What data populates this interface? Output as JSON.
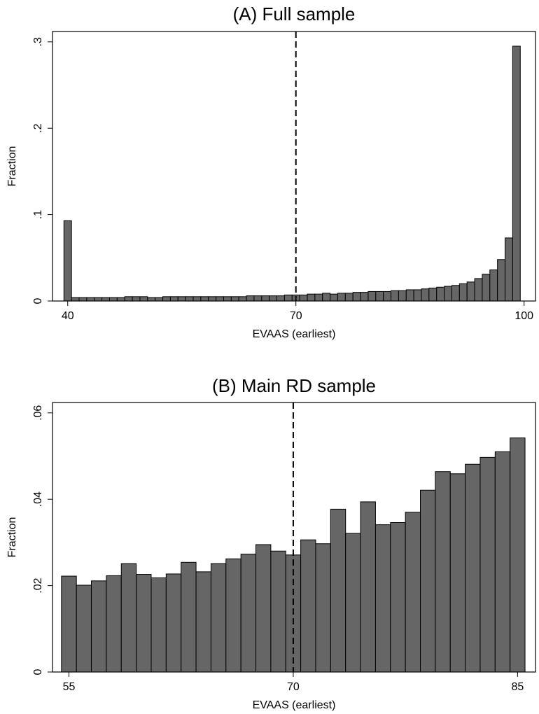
{
  "chart_data": [
    {
      "type": "histogram",
      "title": "(A) Full sample",
      "xlabel": "EVAAS (earliest)",
      "ylabel": "Fraction",
      "bins": [
        39.5,
        40.5,
        41.5,
        42.5,
        43.5,
        44.5,
        45.5,
        46.5,
        47.5,
        48.5,
        49.5,
        50.5,
        51.5,
        52.5,
        53.5,
        54.5,
        55.5,
        56.5,
        57.5,
        58.5,
        59.5,
        60.5,
        61.5,
        62.5,
        63.5,
        64.5,
        65.5,
        66.5,
        67.5,
        68.5,
        69.5,
        70.5,
        71.5,
        72.5,
        73.5,
        74.5,
        75.5,
        76.5,
        77.5,
        78.5,
        79.5,
        80.5,
        81.5,
        82.5,
        83.5,
        84.5,
        85.5,
        86.5,
        87.5,
        88.5,
        89.5,
        90.5,
        91.5,
        92.5,
        93.5,
        94.5,
        95.5,
        96.5,
        97.5,
        98.5,
        99.5
      ],
      "values": [
        0.093,
        0.004,
        0.004,
        0.004,
        0.004,
        0.004,
        0.004,
        0.004,
        0.005,
        0.005,
        0.005,
        0.004,
        0.004,
        0.005,
        0.005,
        0.005,
        0.005,
        0.005,
        0.005,
        0.005,
        0.005,
        0.005,
        0.005,
        0.005,
        0.006,
        0.006,
        0.006,
        0.006,
        0.006,
        0.007,
        0.007,
        0.007,
        0.008,
        0.008,
        0.009,
        0.008,
        0.009,
        0.009,
        0.01,
        0.01,
        0.011,
        0.011,
        0.011,
        0.012,
        0.012,
        0.013,
        0.013,
        0.014,
        0.015,
        0.016,
        0.017,
        0.018,
        0.02,
        0.022,
        0.026,
        0.031,
        0.036,
        0.048,
        0.073,
        0.295
      ],
      "color": "#666666",
      "xlim": [
        38,
        101.5
      ],
      "ylim": [
        0,
        0.312
      ],
      "xticks": [
        40,
        70,
        100
      ],
      "yticks": [
        0,
        {
          "value": 0.1,
          "label": ".1"
        },
        {
          "value": 0.2,
          "label": ".2"
        },
        {
          "value": 0.3,
          "label": ".3"
        }
      ],
      "vline": 70
    },
    {
      "type": "histogram",
      "title": "(B) Main RD sample",
      "xlabel": "EVAAS (earliest)",
      "ylabel": "Fraction",
      "bins": [
        54.5,
        55.5,
        56.5,
        57.5,
        58.5,
        59.5,
        60.5,
        61.5,
        62.5,
        63.5,
        64.5,
        65.5,
        66.5,
        67.5,
        68.5,
        69.5,
        70.5,
        71.5,
        72.5,
        73.5,
        74.5,
        75.5,
        76.5,
        77.5,
        78.5,
        79.5,
        80.5,
        81.5,
        82.5,
        83.5,
        84.5,
        85.5
      ],
      "values": [
        0.0222,
        0.0201,
        0.0211,
        0.0223,
        0.0251,
        0.0226,
        0.0218,
        0.0227,
        0.0254,
        0.0232,
        0.0251,
        0.0262,
        0.0273,
        0.0295,
        0.028,
        0.0271,
        0.0306,
        0.0297,
        0.0377,
        0.0321,
        0.0394,
        0.0341,
        0.0346,
        0.037,
        0.0421,
        0.0464,
        0.0459,
        0.0481,
        0.0497,
        0.051,
        0.0542
      ],
      "color": "#666666",
      "xlim": [
        53.9,
        86.2
      ],
      "ylim": [
        0,
        0.0624
      ],
      "xticks": [
        55,
        70,
        85
      ],
      "yticks": [
        0,
        {
          "value": 0.02,
          "label": ".02"
        },
        {
          "value": 0.04,
          "label": ".04"
        },
        {
          "value": 0.06,
          "label": ".06"
        }
      ],
      "vline": 70
    }
  ]
}
